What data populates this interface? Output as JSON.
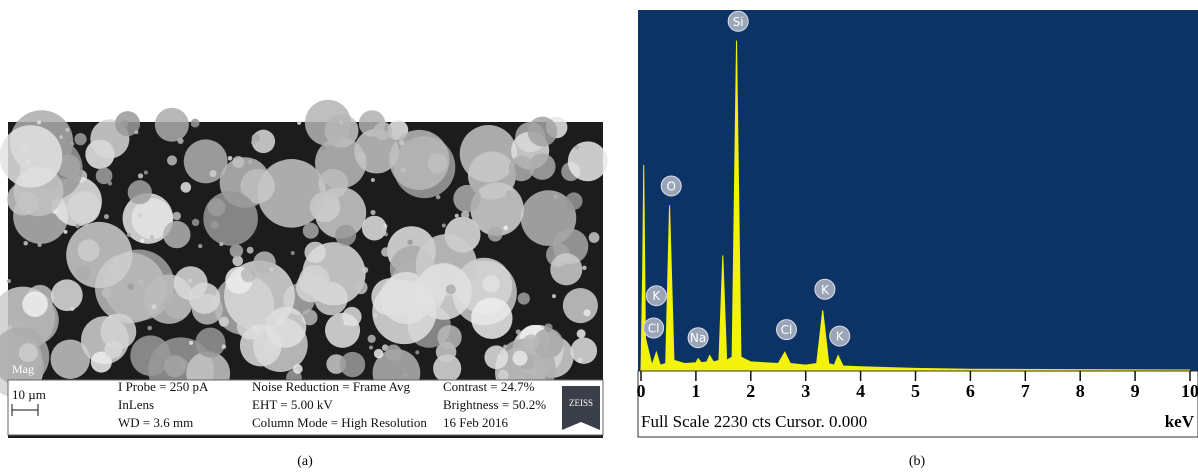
{
  "panel_a": {
    "mag": "Mag",
    "scale": "10 µm",
    "probe": "I Probe = 250 pA",
    "detector": "InLens",
    "wd": "WD = 3.6 mm",
    "noise": "Noise Reduction = Frame Avg",
    "eht": "EHT = 5.00 kV",
    "column": "Column Mode = High Resolution",
    "contrast": "Contrast = 24.7%",
    "brightness": "Brightness = 50.2%",
    "date": "16 Feb 2016",
    "brand": "ZEISS",
    "caption": "(a)"
  },
  "chart_data": {
    "type": "area",
    "color": "#f2f20a",
    "background": "#0b3366",
    "x": [
      0,
      0.03,
      0.05,
      0.08,
      0.2,
      0.28,
      0.35,
      0.45,
      0.52,
      0.6,
      0.8,
      1.0,
      1.04,
      1.1,
      1.2,
      1.25,
      1.32,
      1.42,
      1.49,
      1.56,
      1.66,
      1.74,
      1.82,
      2.0,
      2.5,
      2.62,
      2.72,
      3.0,
      3.2,
      3.31,
      3.42,
      3.52,
      3.59,
      3.68,
      4.0,
      5.0,
      6.0,
      10
    ],
    "values": [
      0,
      600,
      1270,
      200,
      30,
      110,
      30,
      40,
      1020,
      60,
      40,
      45,
      70,
      45,
      50,
      90,
      50,
      60,
      710,
      60,
      80,
      2040,
      80,
      50,
      40,
      110,
      40,
      30,
      40,
      370,
      40,
      30,
      90,
      25,
      20,
      10,
      5,
      0
    ],
    "xlim": [
      0,
      10
    ],
    "ylim": [
      0,
      2230
    ],
    "xticks": [
      0,
      1,
      2,
      3,
      4,
      5,
      6,
      7,
      8,
      9,
      10
    ],
    "annotations": [
      {
        "text": "Si",
        "x": 1.77,
        "y": 2160
      },
      {
        "text": "O",
        "x": 0.55,
        "y": 1140
      },
      {
        "text": "K",
        "x": 0.28,
        "y": 460
      },
      {
        "text": "Cl",
        "x": 0.23,
        "y": 260
      },
      {
        "text": "Na",
        "x": 1.04,
        "y": 200
      },
      {
        "text": "Cl",
        "x": 2.65,
        "y": 250
      },
      {
        "text": "K",
        "x": 3.35,
        "y": 500
      },
      {
        "text": "K",
        "x": 3.62,
        "y": 210
      }
    ],
    "footer": "Full Scale 2230 cts Cursor. 0.000",
    "xlabel": "keV",
    "caption": "(b)"
  }
}
